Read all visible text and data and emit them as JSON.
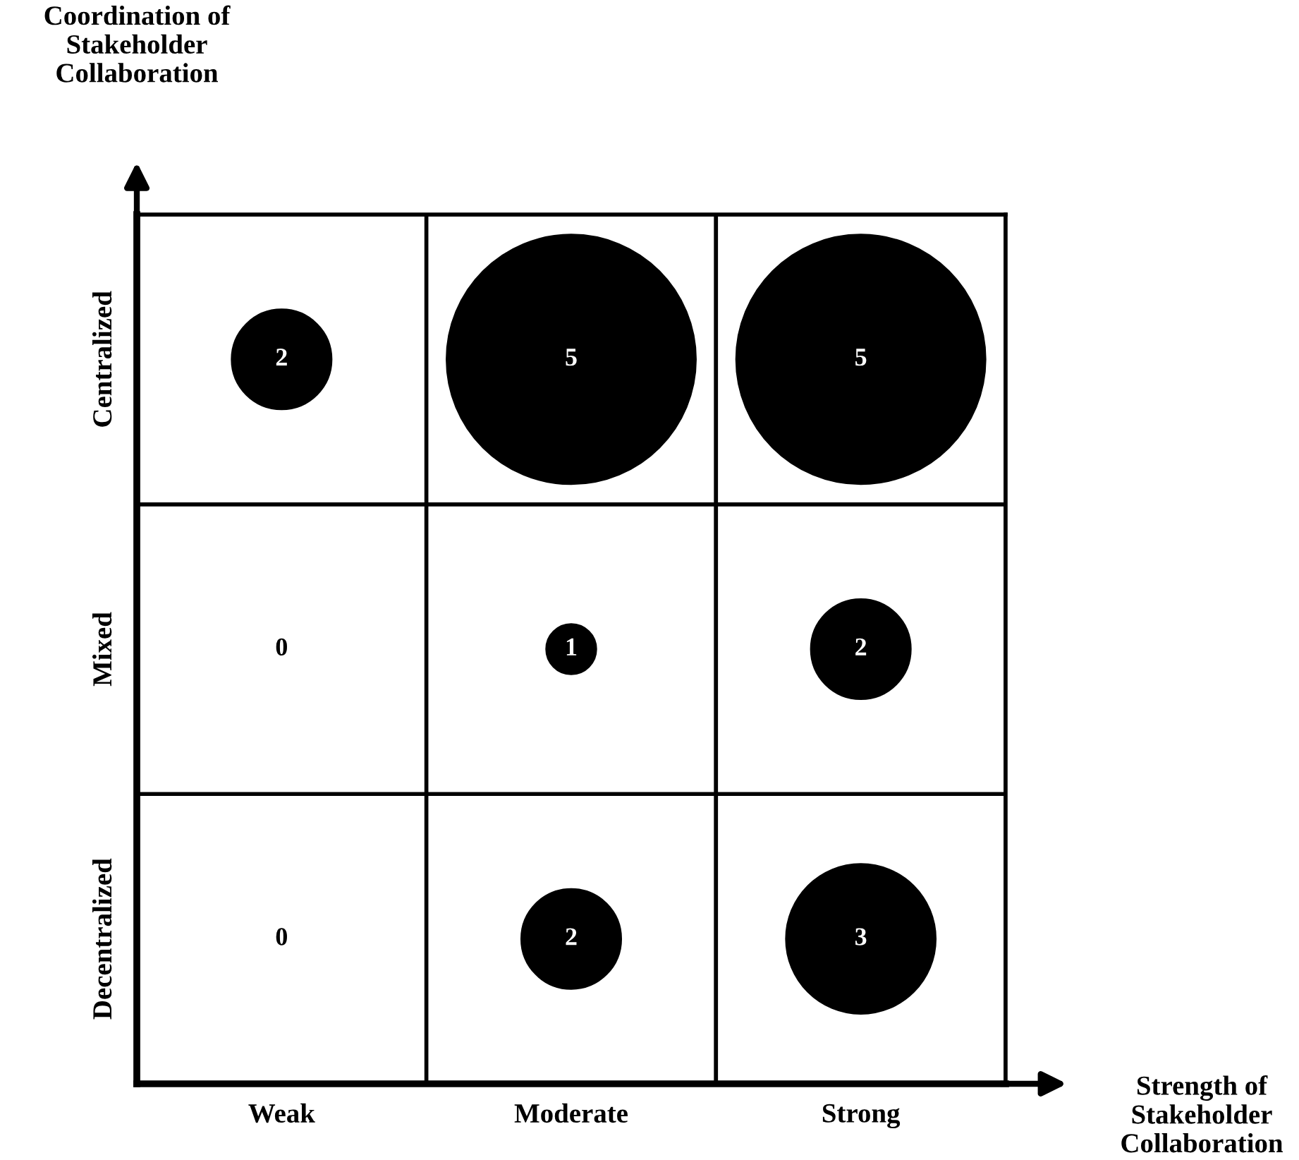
{
  "chart_data": {
    "type": "heatmap",
    "xlabel": "Strength of\nStakeholder\nCollaboration",
    "ylabel": "Coordination of\nStakeholder\nCollaboration",
    "categories": [
      "Weak",
      "Moderate",
      "Strong"
    ],
    "y_categories": [
      "Centralized",
      "Mixed",
      "Decentralized"
    ],
    "cells": [
      [
        2,
        5,
        5
      ],
      [
        0,
        1,
        2
      ],
      [
        0,
        2,
        3
      ]
    ],
    "color": "#000000",
    "data_labels": true
  }
}
